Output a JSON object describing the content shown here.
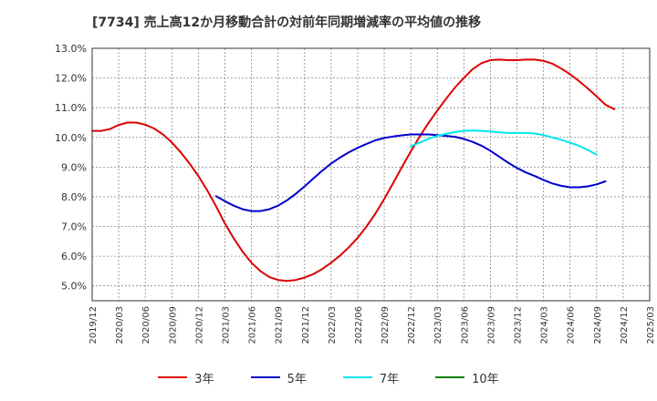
{
  "chart_data": {
    "type": "line",
    "title": "[7734]  売上高12か月移動合計の対前年同期増減率の平均値の推移",
    "xlabel": "",
    "ylabel": "",
    "ylim": [
      4.5,
      13.0
    ],
    "xlim": [
      "2019/12",
      "2025/03"
    ],
    "y_ticks": [
      "13.0%",
      "12.0%",
      "11.0%",
      "10.0%",
      "9.0%",
      "8.0%",
      "7.0%",
      "6.0%",
      "5.0%"
    ],
    "y_tick_values": [
      13,
      12,
      11,
      10,
      9,
      8,
      7,
      6,
      5
    ],
    "x_ticks": [
      "2019/12",
      "2020/03",
      "2020/06",
      "2020/09",
      "2020/12",
      "2021/03",
      "2021/06",
      "2021/09",
      "2021/12",
      "2022/03",
      "2022/06",
      "2022/09",
      "2022/12",
      "2023/03",
      "2023/06",
      "2023/09",
      "2023/12",
      "2024/03",
      "2024/06",
      "2024/09",
      "2024/12",
      "2025/03"
    ],
    "grid": true,
    "legend_position": "bottom",
    "series": [
      {
        "name": "3年",
        "color": "#dd0000",
        "points": [
          [
            "2019/12",
            10.22
          ],
          [
            "2020/01",
            10.22
          ],
          [
            "2020/02",
            10.28
          ],
          [
            "2020/03",
            10.42
          ],
          [
            "2020/04",
            10.5
          ],
          [
            "2020/05",
            10.5
          ],
          [
            "2020/06",
            10.43
          ],
          [
            "2020/07",
            10.3
          ],
          [
            "2020/08",
            10.1
          ],
          [
            "2020/09",
            9.83
          ],
          [
            "2020/10",
            9.5
          ],
          [
            "2020/11",
            9.12
          ],
          [
            "2020/12",
            8.7
          ],
          [
            "2021/01",
            8.22
          ],
          [
            "2021/02",
            7.68
          ],
          [
            "2021/03",
            7.1
          ],
          [
            "2021/04",
            6.6
          ],
          [
            "2021/05",
            6.15
          ],
          [
            "2021/06",
            5.78
          ],
          [
            "2021/07",
            5.5
          ],
          [
            "2021/08",
            5.3
          ],
          [
            "2021/09",
            5.2
          ],
          [
            "2021/10",
            5.17
          ],
          [
            "2021/11",
            5.2
          ],
          [
            "2021/12",
            5.28
          ],
          [
            "2022/01",
            5.4
          ],
          [
            "2022/02",
            5.57
          ],
          [
            "2022/03",
            5.78
          ],
          [
            "2022/04",
            6.02
          ],
          [
            "2022/05",
            6.3
          ],
          [
            "2022/06",
            6.62
          ],
          [
            "2022/07",
            7.0
          ],
          [
            "2022/08",
            7.43
          ],
          [
            "2022/09",
            7.92
          ],
          [
            "2022/10",
            8.45
          ],
          [
            "2022/11",
            9.0
          ],
          [
            "2022/12",
            9.52
          ],
          [
            "2023/01",
            10.02
          ],
          [
            "2023/02",
            10.48
          ],
          [
            "2023/03",
            10.9
          ],
          [
            "2023/04",
            11.3
          ],
          [
            "2023/05",
            11.68
          ],
          [
            "2023/06",
            12.0
          ],
          [
            "2023/07",
            12.3
          ],
          [
            "2023/08",
            12.5
          ],
          [
            "2023/09",
            12.6
          ],
          [
            "2023/10",
            12.62
          ],
          [
            "2023/11",
            12.6
          ],
          [
            "2023/12",
            12.6
          ],
          [
            "2024/01",
            12.62
          ],
          [
            "2024/02",
            12.62
          ],
          [
            "2024/03",
            12.58
          ],
          [
            "2024/04",
            12.48
          ],
          [
            "2024/05",
            12.32
          ],
          [
            "2024/06",
            12.13
          ],
          [
            "2024/07",
            11.9
          ],
          [
            "2024/08",
            11.65
          ],
          [
            "2024/09",
            11.38
          ],
          [
            "2024/10",
            11.1
          ],
          [
            "2024/11",
            10.95
          ]
        ]
      },
      {
        "name": "5年",
        "color": "#0000cc",
        "points": [
          [
            "2021/02",
            8.02
          ],
          [
            "2021/03",
            7.85
          ],
          [
            "2021/04",
            7.7
          ],
          [
            "2021/05",
            7.58
          ],
          [
            "2021/06",
            7.52
          ],
          [
            "2021/07",
            7.52
          ],
          [
            "2021/08",
            7.58
          ],
          [
            "2021/09",
            7.7
          ],
          [
            "2021/10",
            7.88
          ],
          [
            "2021/11",
            8.1
          ],
          [
            "2021/12",
            8.35
          ],
          [
            "2022/01",
            8.62
          ],
          [
            "2022/02",
            8.88
          ],
          [
            "2022/03",
            9.12
          ],
          [
            "2022/04",
            9.32
          ],
          [
            "2022/05",
            9.5
          ],
          [
            "2022/06",
            9.65
          ],
          [
            "2022/07",
            9.78
          ],
          [
            "2022/08",
            9.9
          ],
          [
            "2022/09",
            9.98
          ],
          [
            "2022/10",
            10.03
          ],
          [
            "2022/11",
            10.07
          ],
          [
            "2022/12",
            10.1
          ],
          [
            "2023/01",
            10.1
          ],
          [
            "2023/02",
            10.1
          ],
          [
            "2023/03",
            10.08
          ],
          [
            "2023/04",
            10.05
          ],
          [
            "2023/05",
            10.02
          ],
          [
            "2023/06",
            9.95
          ],
          [
            "2023/07",
            9.85
          ],
          [
            "2023/08",
            9.72
          ],
          [
            "2023/09",
            9.55
          ],
          [
            "2023/10",
            9.35
          ],
          [
            "2023/11",
            9.15
          ],
          [
            "2023/12",
            8.97
          ],
          [
            "2024/01",
            8.82
          ],
          [
            "2024/02",
            8.7
          ],
          [
            "2024/03",
            8.57
          ],
          [
            "2024/04",
            8.45
          ],
          [
            "2024/05",
            8.37
          ],
          [
            "2024/06",
            8.32
          ],
          [
            "2024/07",
            8.32
          ],
          [
            "2024/08",
            8.35
          ],
          [
            "2024/09",
            8.42
          ],
          [
            "2024/10",
            8.52
          ]
        ]
      },
      {
        "name": "7年",
        "color": "#00e5ee",
        "points": [
          [
            "2022/12",
            9.7
          ],
          [
            "2023/01",
            9.82
          ],
          [
            "2023/02",
            9.95
          ],
          [
            "2023/03",
            10.05
          ],
          [
            "2023/04",
            10.12
          ],
          [
            "2023/05",
            10.18
          ],
          [
            "2023/06",
            10.22
          ],
          [
            "2023/07",
            10.23
          ],
          [
            "2023/08",
            10.22
          ],
          [
            "2023/09",
            10.2
          ],
          [
            "2023/10",
            10.17
          ],
          [
            "2023/11",
            10.15
          ],
          [
            "2023/12",
            10.15
          ],
          [
            "2024/01",
            10.15
          ],
          [
            "2024/02",
            10.13
          ],
          [
            "2024/03",
            10.08
          ],
          [
            "2024/04",
            10.0
          ],
          [
            "2024/05",
            9.92
          ],
          [
            "2024/06",
            9.82
          ],
          [
            "2024/07",
            9.72
          ],
          [
            "2024/08",
            9.58
          ],
          [
            "2024/09",
            9.42
          ]
        ]
      },
      {
        "name": "10年",
        "color": "#008000",
        "points": []
      }
    ]
  }
}
